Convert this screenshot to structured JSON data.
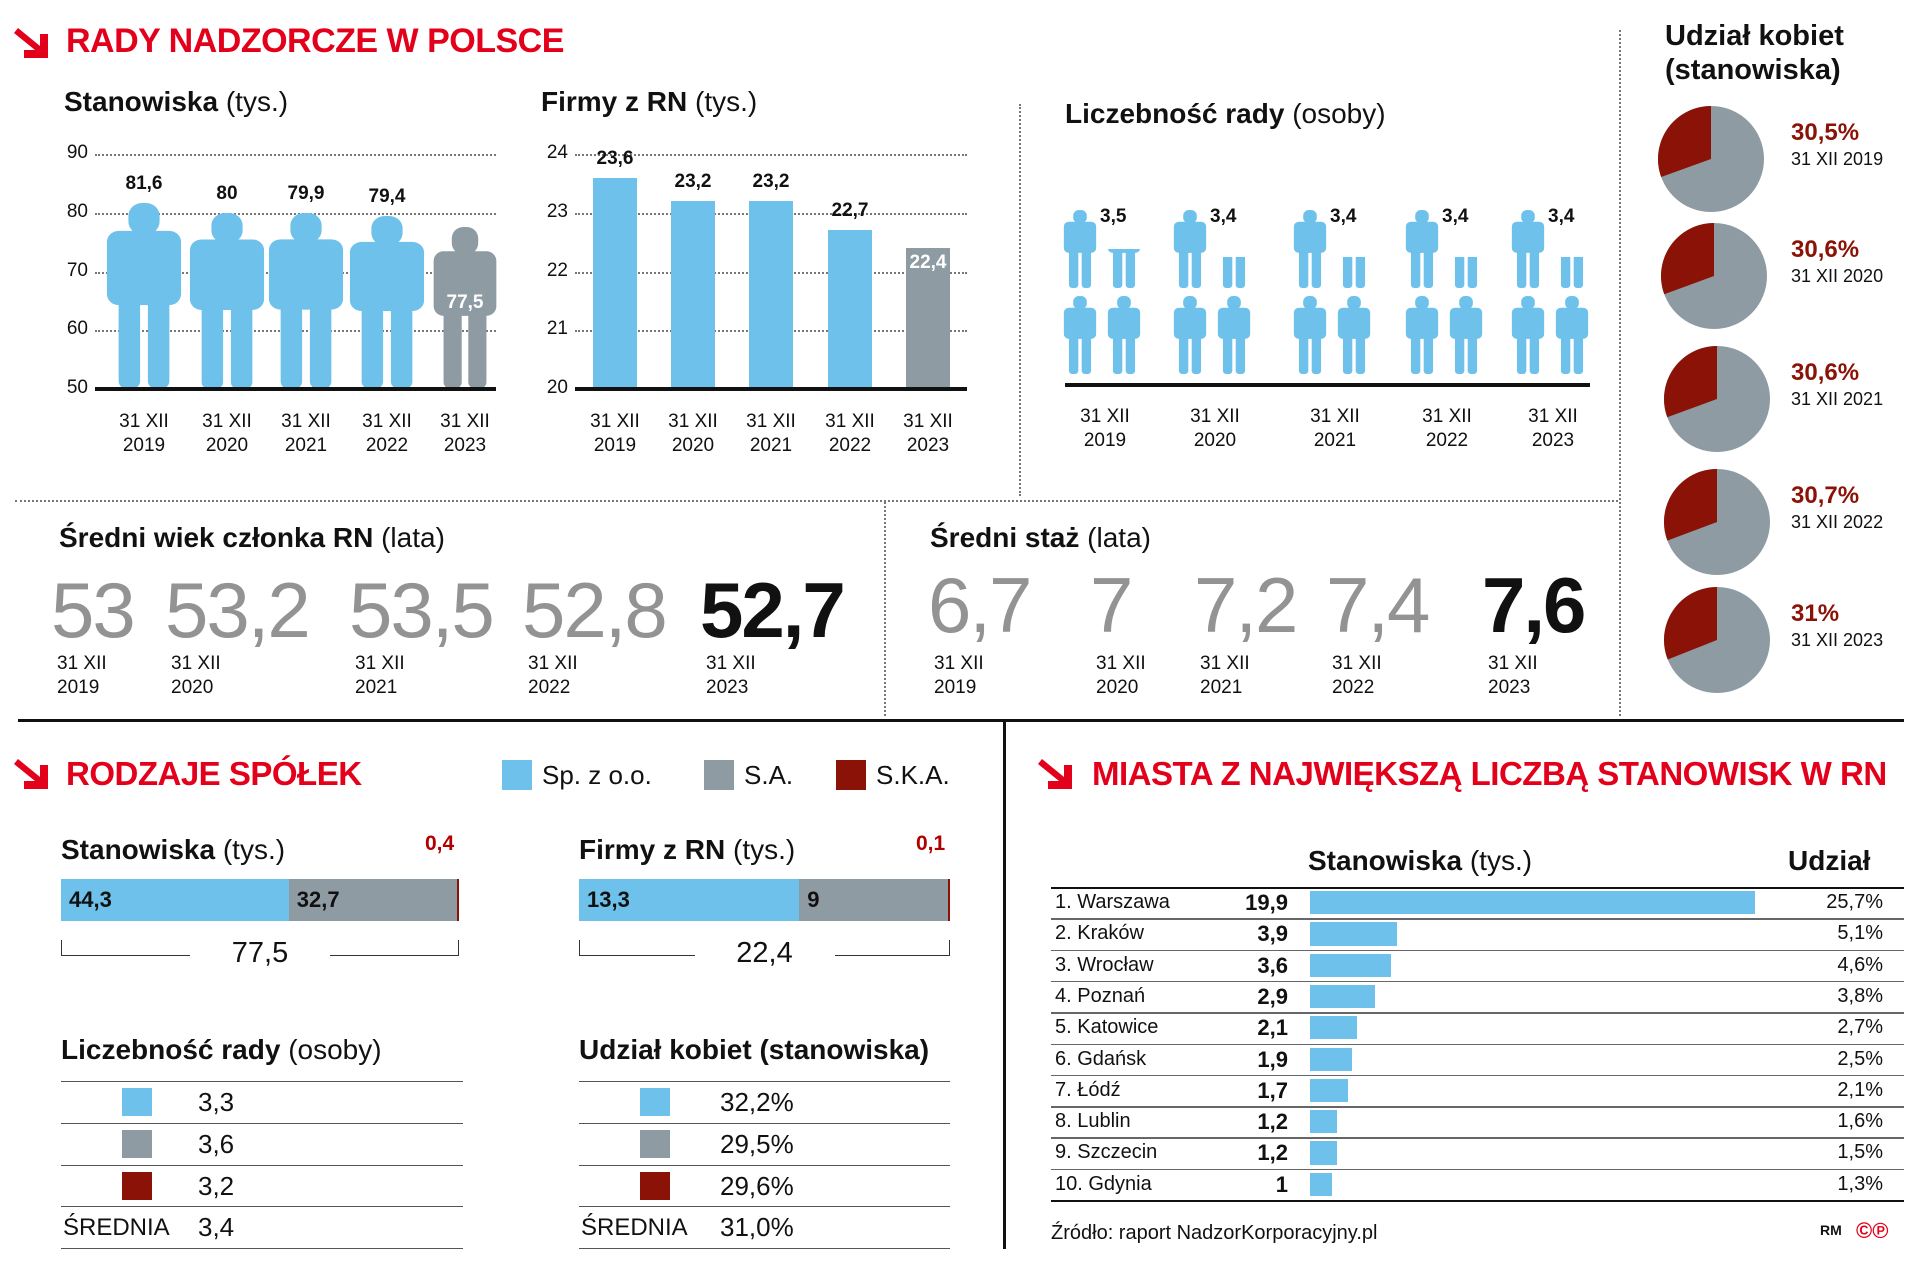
{
  "title": "RADY NADZORCZE W POLSCE",
  "dates": [
    {
      "d": "31 XII",
      "y": "2019"
    },
    {
      "d": "31 XII",
      "y": "2020"
    },
    {
      "d": "31 XII",
      "y": "2021"
    },
    {
      "d": "31 XII",
      "y": "2022"
    },
    {
      "d": "31 XII",
      "y": "2023"
    }
  ],
  "colors": {
    "blue": "#6ec1ea",
    "gray": "#8f9ba3",
    "darkred": "#8b1206",
    "red": "#e3001b"
  },
  "chart_data": [
    {
      "type": "bar",
      "title": "Stanowiska",
      "unit": "(tys.)",
      "ylim": [
        50,
        90
      ],
      "yticks": [
        "90",
        "80",
        "70",
        "60",
        "50"
      ],
      "values": [
        81.6,
        80,
        79.9,
        79.4,
        77.5
      ],
      "labels": [
        "81,6",
        "80",
        "79,9",
        "79,4",
        "77,5"
      ]
    },
    {
      "type": "bar",
      "title": "Firmy z RN",
      "unit": "(tys.)",
      "ylim": [
        20,
        24
      ],
      "yticks": [
        "24",
        "23",
        "22",
        "21",
        "20"
      ],
      "values": [
        23.6,
        23.2,
        23.2,
        22.7,
        22.4
      ],
      "labels": [
        "23,6",
        "23,2",
        "23,2",
        "22,7",
        "22,4"
      ]
    },
    {
      "type": "bar",
      "title": "Liczebność rady",
      "unit": "(osoby)",
      "values": [
        3.5,
        3.4,
        3.4,
        3.4,
        3.4
      ],
      "labels": [
        "3,5",
        "3,4",
        "3,4",
        "3,4",
        "3,4"
      ]
    },
    {
      "type": "table",
      "title": "Średni wiek członka RN",
      "unit": "(lata)",
      "values": [
        "53",
        "53,2",
        "53,5",
        "52,8",
        "52,7"
      ]
    },
    {
      "type": "table",
      "title": "Średni staż",
      "unit": "(lata)",
      "values": [
        "6,7",
        "7",
        "7,2",
        "7,4",
        "7,6"
      ]
    },
    {
      "type": "pie",
      "title1": "Udział kobiet",
      "title2": "(stanowiska)",
      "items": [
        {
          "value": 30.5,
          "pct": "30,5%",
          "date": "31 XII 2019"
        },
        {
          "value": 30.6,
          "pct": "30,6%",
          "date": "31 XII 2020"
        },
        {
          "value": 30.6,
          "pct": "30,6%",
          "date": "31 XII 2021"
        },
        {
          "value": 30.7,
          "pct": "30,7%",
          "date": "31 XII 2022"
        },
        {
          "value": 31,
          "pct": "31%",
          "date": "31 XII 2023"
        }
      ]
    },
    {
      "type": "bar",
      "title": "Stanowiska",
      "unit": "(tys.)",
      "segments": [
        44.3,
        32.7,
        0.4
      ],
      "labels": [
        "44,3",
        "32,7",
        "0,4"
      ],
      "total": "77,5"
    },
    {
      "type": "bar",
      "title": "Firmy z RN",
      "unit": "(tys.)",
      "segments": [
        13.3,
        9,
        0.1
      ],
      "labels": [
        "13,3",
        "9",
        "0,1"
      ],
      "total": "22,4"
    },
    {
      "type": "bar",
      "title": "MIASTA Z NAJWIĘKSZĄ LICZBĄ STANOWISK W RN",
      "col_positions": "Stanowiska",
      "col_unit": "(tys.)",
      "col_share": "Udział",
      "rows": [
        {
          "name": "1. Warszawa",
          "value": 19.9,
          "label": "19,9",
          "share": "25,7%"
        },
        {
          "name": "2. Kraków",
          "value": 3.9,
          "label": "3,9",
          "share": "5,1%"
        },
        {
          "name": "3. Wrocław",
          "value": 3.6,
          "label": "3,6",
          "share": "4,6%"
        },
        {
          "name": "4. Poznań",
          "value": 2.9,
          "label": "2,9",
          "share": "3,8%"
        },
        {
          "name": "5. Katowice",
          "value": 2.1,
          "label": "2,1",
          "share": "2,7%"
        },
        {
          "name": "6. Gdańsk",
          "value": 1.9,
          "label": "1,9",
          "share": "2,5%"
        },
        {
          "name": "7. Łódź",
          "value": 1.7,
          "label": "1,7",
          "share": "2,1%"
        },
        {
          "name": "8. Lublin",
          "value": 1.2,
          "label": "1,2",
          "share": "1,6%"
        },
        {
          "name": "9. Szczecin",
          "value": 1.2,
          "label": "1,2",
          "share": "1,5%"
        },
        {
          "name": "10. Gdynia",
          "value": 1,
          "label": "1",
          "share": "1,3%"
        }
      ]
    }
  ],
  "company_types": {
    "title": "RODZAJE SPÓŁEK",
    "legend": [
      "Sp. z o.o.",
      "S.A.",
      "S.K.A."
    ],
    "board": {
      "title": "Liczebność rady",
      "unit": "(osoby)",
      "rows": [
        "3,3",
        "3,6",
        "3,2"
      ],
      "avg_label": "ŚREDNIA",
      "avg": "3,4"
    },
    "women": {
      "title": "Udział kobiet (stanowiska)",
      "rows": [
        "32,2%",
        "29,5%",
        "29,6%"
      ],
      "avg_label": "ŚREDNIA",
      "avg": "31,0%"
    }
  },
  "source": "Źródło: raport NadzorKorporacyjny.pl",
  "credit": "RM"
}
